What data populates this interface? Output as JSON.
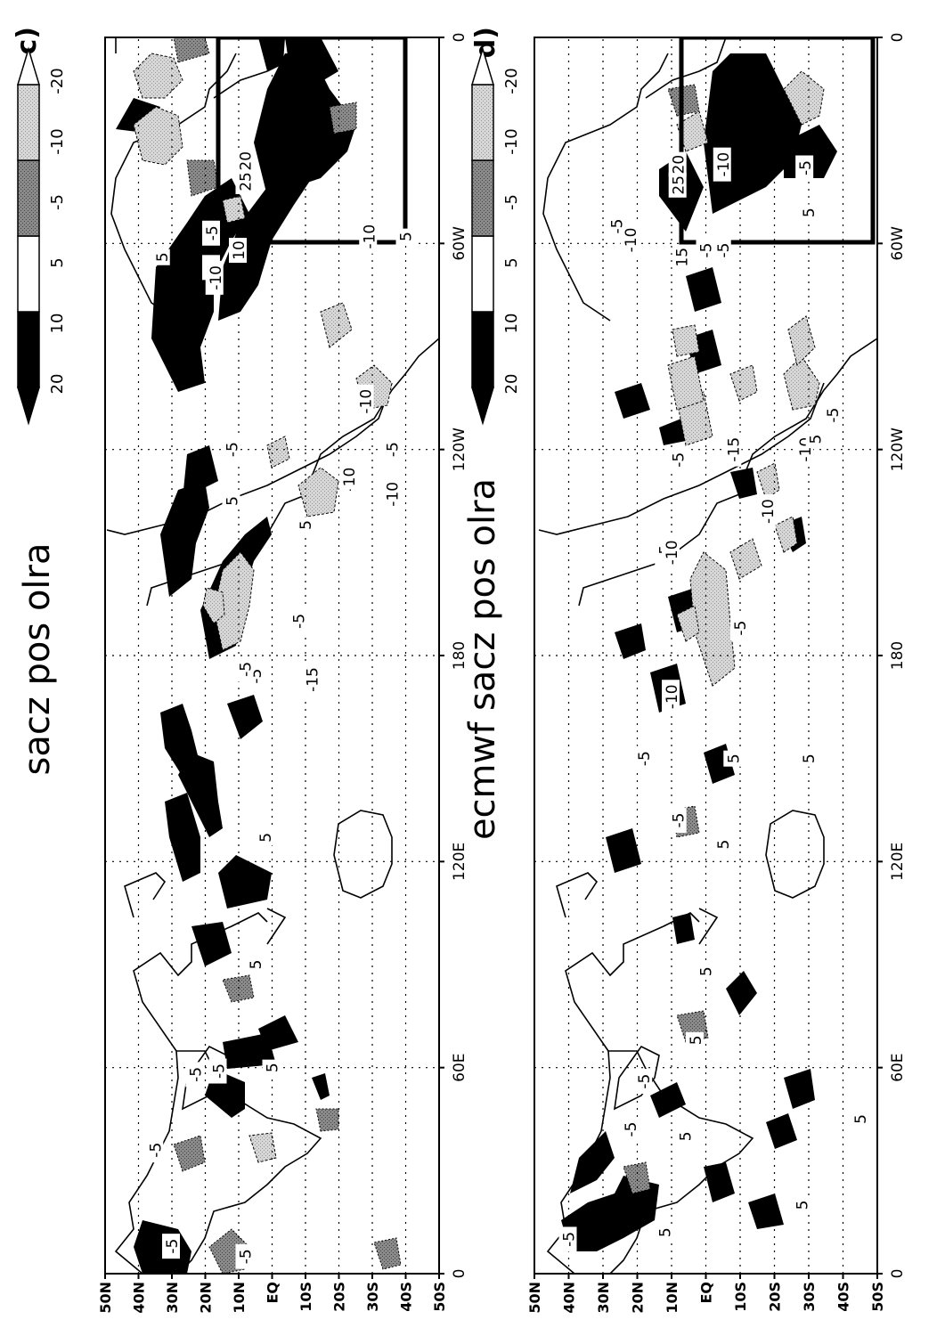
{
  "figure": {
    "panels": [
      {
        "id": "c",
        "letter": "c)",
        "title": "sacz pos olra",
        "labels": [
          {
            "t": "-5",
            "lon": 8,
            "lat": 30
          },
          {
            "t": "-5",
            "lon": 36,
            "lat": 35
          },
          {
            "t": "-5",
            "lon": 5,
            "lat": 8
          },
          {
            "t": "-5",
            "lon": 58,
            "lat": 23
          },
          {
            "t": "-5",
            "lon": 59,
            "lat": 16
          },
          {
            "t": "5",
            "lon": 60,
            "lat": 0
          },
          {
            "t": "5",
            "lon": 90,
            "lat": 5
          },
          {
            "t": "5",
            "lon": 127,
            "lat": 2
          },
          {
            "t": "-5",
            "lon": 174,
            "lat": 5
          },
          {
            "t": "-5",
            "lon": 176,
            "lat": 8
          },
          {
            "t": "-15",
            "lon": 173,
            "lat": -12
          },
          {
            "t": "-5",
            "lon": 190,
            "lat": -8
          },
          {
            "t": "5",
            "lon": 225,
            "lat": 12
          },
          {
            "t": "-5",
            "lon": 240,
            "lat": 12
          },
          {
            "t": "-5",
            "lon": 230,
            "lat": -23
          },
          {
            "t": "5",
            "lon": 218,
            "lat": -10
          },
          {
            "t": "10",
            "lon": 232,
            "lat": -23
          },
          {
            "t": "-10",
            "lon": 254,
            "lat": -28
          },
          {
            "t": "-10",
            "lon": 227,
            "lat": -36
          },
          {
            "t": "-5",
            "lon": 240,
            "lat": -36
          },
          {
            "t": "5",
            "lon": 296,
            "lat": 33
          },
          {
            "t": "-5",
            "lon": 293,
            "lat": 18
          },
          {
            "t": "-10",
            "lon": 290,
            "lat": 17
          },
          {
            "t": "-5",
            "lon": 303,
            "lat": 18
          },
          {
            "t": "10",
            "lon": 298,
            "lat": 10
          },
          {
            "t": "25",
            "lon": 318,
            "lat": 8
          },
          {
            "t": "20",
            "lon": 324,
            "lat": 8
          },
          {
            "t": "-10",
            "lon": 302,
            "lat": -29
          },
          {
            "t": "5",
            "lon": 302,
            "lat": -40
          }
        ]
      },
      {
        "id": "d",
        "letter": "d)",
        "title": "ecmwf sacz pos olra",
        "labels": [
          {
            "t": "-5",
            "lon": 10,
            "lat": 40
          },
          {
            "t": "-5",
            "lon": 42,
            "lat": 22
          },
          {
            "t": "-5",
            "lon": 56,
            "lat": 18
          },
          {
            "t": "5",
            "lon": 68,
            "lat": 3
          },
          {
            "t": "5",
            "lon": 40,
            "lat": 6
          },
          {
            "t": "5",
            "lon": 88,
            "lat": 0
          },
          {
            "t": "5",
            "lon": 12,
            "lat": 12
          },
          {
            "t": "5",
            "lon": 20,
            "lat": -28
          },
          {
            "t": "5",
            "lon": 45,
            "lat": -45
          },
          {
            "t": "-5",
            "lon": 150,
            "lat": 18
          },
          {
            "t": "-5",
            "lon": 132,
            "lat": 8
          },
          {
            "t": "5",
            "lon": 125,
            "lat": -5
          },
          {
            "t": "-10",
            "lon": 168,
            "lat": 10
          },
          {
            "t": "5",
            "lon": 150,
            "lat": -8
          },
          {
            "t": "5",
            "lon": 150,
            "lat": -30
          },
          {
            "t": "-5",
            "lon": 188,
            "lat": -10
          },
          {
            "t": "-5",
            "lon": 210,
            "lat": 12
          },
          {
            "t": "-10",
            "lon": 210,
            "lat": 10
          },
          {
            "t": "-5",
            "lon": 237,
            "lat": 8
          },
          {
            "t": "-15",
            "lon": 240,
            "lat": -8
          },
          {
            "t": "-10",
            "lon": 222,
            "lat": -18
          },
          {
            "t": "-10",
            "lon": 240,
            "lat": -29
          },
          {
            "t": "5",
            "lon": 243,
            "lat": -32
          },
          {
            "t": "-5",
            "lon": 250,
            "lat": -37
          },
          {
            "t": "-10",
            "lon": 301,
            "lat": 22
          },
          {
            "t": "-5",
            "lon": 305,
            "lat": 26
          },
          {
            "t": "-5",
            "lon": 298,
            "lat": 0
          },
          {
            "t": "-5",
            "lon": 298,
            "lat": -5
          },
          {
            "t": "15",
            "lon": 296,
            "lat": 7
          },
          {
            "t": "25",
            "lon": 317,
            "lat": 8
          },
          {
            "t": "20",
            "lon": 323,
            "lat": 8
          },
          {
            "t": "-10",
            "lon": 323,
            "lat": -5
          },
          {
            "t": "-5",
            "lon": 322,
            "lat": -29
          },
          {
            "t": "5",
            "lon": 309,
            "lat": -30
          }
        ]
      }
    ],
    "lon_ticks": [
      "0",
      "60E",
      "120E",
      "180",
      "120W",
      "60W",
      "0"
    ],
    "lat_ticks": [
      "50N",
      "40N",
      "30N",
      "20N",
      "10N",
      "EQ",
      "10S",
      "20S",
      "30S",
      "40S",
      "50S"
    ],
    "colorbar_labels": [
      "20",
      "10",
      "5",
      "-5",
      "-10",
      "-20"
    ],
    "colorbar_fills": [
      "#000000",
      "#000000",
      "#ffffff",
      "#8c8c8c",
      "#d2d2d2",
      "#ffffff"
    ],
    "box_region": {
      "lon": [
        -75,
        0
      ],
      "lat": [
        -40,
        10
      ]
    }
  }
}
